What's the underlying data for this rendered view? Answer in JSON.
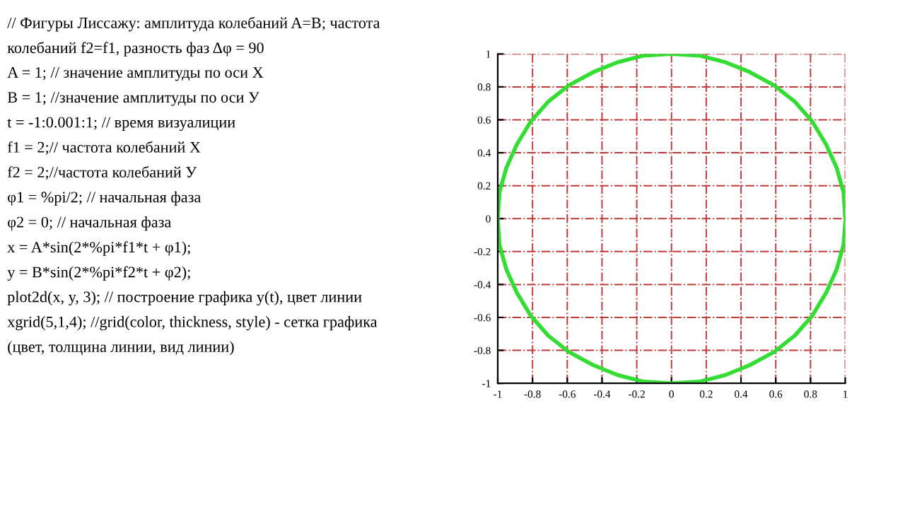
{
  "chart_data": {
    "type": "line",
    "annotations": [
      "// Фигуры Лиссажу: амплитуда колебаний A=B; частота",
      "колебаний f2=f1, разность фаз Δφ = 90",
      "A = 1; // значение амплитуды по оси X",
      "B = 1; //значение амплитуды по оси У",
      "t = -1:0.001:1; // время визуалиции",
      "f1 = 2;// частота колебаний X",
      "f2 = 2;//частота колебаний У",
      "φ1 = %pi/2; // начальная фаза",
      "φ2 = 0; // начальная фаза",
      "x = A*sin(2*%pi*f1*t + φ1);",
      "y = B*sin(2*%pi*f2*t + φ2);",
      "plot2d(x, y, 3); // построение графика y(t), цвет линии",
      "xgrid(5,1,4); //grid(color, thickness, style) - сетка графика",
      "(цвет, толщина линии, вид линии)"
    ],
    "series": [
      {
        "color": "#33dd33",
        "x": [
          1.0,
          0.99,
          0.95,
          0.89,
          0.81,
          0.71,
          0.59,
          0.45,
          0.31,
          0.16,
          0.0,
          -0.16,
          -0.31,
          -0.45,
          -0.59,
          -0.71,
          -0.81,
          -0.89,
          -0.95,
          -0.99,
          -1.0,
          -0.99,
          -0.95,
          -0.89,
          -0.81,
          -0.71,
          -0.59,
          -0.45,
          -0.31,
          -0.16,
          0.0,
          0.16,
          0.31,
          0.45,
          0.59,
          0.71,
          0.81,
          0.89,
          0.95,
          0.99,
          1.0
        ],
        "values": [
          0.0,
          0.16,
          0.31,
          0.45,
          0.59,
          0.71,
          0.81,
          0.89,
          0.95,
          0.99,
          1.0,
          0.99,
          0.95,
          0.89,
          0.81,
          0.71,
          0.59,
          0.45,
          0.31,
          0.16,
          0.0,
          -0.16,
          -0.31,
          -0.45,
          -0.59,
          -0.71,
          -0.81,
          -0.89,
          -0.95,
          -0.99,
          -1.0,
          -0.99,
          -0.95,
          -0.89,
          -0.81,
          -0.71,
          -0.59,
          -0.45,
          -0.31,
          -0.16,
          -0.02
        ]
      }
    ],
    "xlim": [
      -1,
      1
    ],
    "ylim": [
      -1,
      1
    ],
    "xticks": [
      -1,
      -0.8,
      -0.6,
      -0.4,
      -0.2,
      0,
      0.2,
      0.4,
      0.6,
      0.8,
      1
    ],
    "yticks": [
      -1,
      -0.8,
      -0.6,
      -0.4,
      -0.2,
      0,
      0.2,
      0.4,
      0.6,
      0.8,
      1
    ],
    "grid": true,
    "marker": "none",
    "line_style": "solid"
  }
}
